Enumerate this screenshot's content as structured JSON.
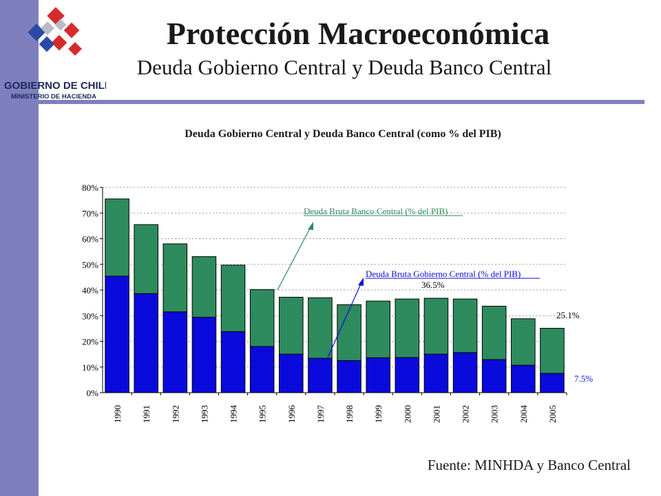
{
  "header": {
    "title": "Protección Macroeconómica",
    "subtitle": "Deuda Gobierno Central y Deuda Banco Central",
    "logo_line1": "GOBIERNO DE CHILE",
    "logo_line2": "MINISTERIO DE HACIENDA"
  },
  "source": "Fuente: MINHDA y Banco Central",
  "colors": {
    "band": "#7f7fbf",
    "gobierno": "#0a0adc",
    "banco": "#2e8b5e",
    "logo_red": "#d62b2b",
    "logo_blue": "#2b4aa8"
  },
  "chart_data": {
    "type": "bar",
    "stacked": true,
    "title": "Deuda Gobierno Central  y Deuda Banco Central (como % del PIB)",
    "categories": [
      "1990",
      "1991",
      "1992",
      "1993",
      "1994",
      "1995",
      "1996",
      "1997",
      "1998",
      "1999",
      "2000",
      "2001",
      "2002",
      "2003",
      "2004",
      "2005"
    ],
    "series": [
      {
        "name": "Deuda Bruta Gobierno Central (% del PIB)",
        "color": "#0a0adc",
        "values": [
          45.4,
          38.6,
          31.5,
          29.4,
          23.8,
          18.0,
          15.0,
          13.4,
          12.5,
          13.6,
          13.7,
          15.0,
          15.6,
          12.9,
          10.7,
          7.5
        ]
      },
      {
        "name": "Deuda Bruta Banco Central (% del PIB)",
        "color": "#2e8b5e",
        "values": [
          30.1,
          26.9,
          26.5,
          23.6,
          25.9,
          22.2,
          22.2,
          23.6,
          21.8,
          22.1,
          22.8,
          21.8,
          20.9,
          20.8,
          18.1,
          17.6
        ]
      }
    ],
    "ylim": [
      0,
      80
    ],
    "yticks": [
      "0%",
      "10%",
      "20%",
      "30%",
      "40%",
      "50%",
      "60%",
      "70%",
      "80%"
    ],
    "grid": true,
    "annotations": [
      {
        "text": "Deuda Bruta Banco Central (% del PIB)",
        "color": "#2e8b5e"
      },
      {
        "text": "Deuda Bruta Gobierno Central (% del PIB)",
        "color": "#0a0adc"
      },
      {
        "text": "36.5%"
      },
      {
        "text": "25.1%"
      },
      {
        "text": "7.5%"
      }
    ]
  }
}
